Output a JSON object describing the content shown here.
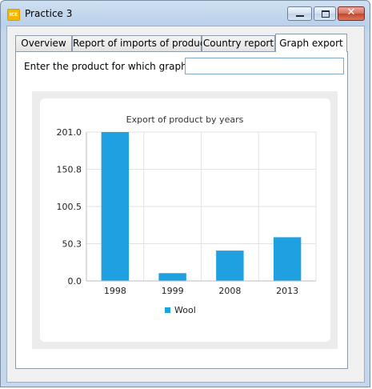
{
  "window": {
    "title": "Practice 3",
    "icon": "app-icon",
    "buttons": [
      "minimize-icon",
      "maximize-icon",
      "close-icon"
    ]
  },
  "tabs": [
    {
      "label": "Overview",
      "active": false
    },
    {
      "label": "Report of imports of product",
      "active": false
    },
    {
      "label": "Country report",
      "active": false
    },
    {
      "label": "Graph export",
      "active": true
    }
  ],
  "form": {
    "prompt_label": "Enter the product for which graph for:",
    "product_value": "",
    "product_placeholder": ""
  },
  "colors": {
    "bar": "#1fa0e0",
    "grid": "#e2e2e2"
  },
  "chart_data": {
    "type": "bar",
    "title": "Export of product by years",
    "categories": [
      "1998",
      "1999",
      "2008",
      "2013"
    ],
    "series": [
      {
        "name": "Wool",
        "values": [
          201.0,
          10.5,
          41.0,
          59.0
        ]
      }
    ],
    "ylim": [
      0,
      201.0
    ],
    "yticks": [
      "0.0",
      "50.3",
      "100.5",
      "150.8",
      "201.0"
    ],
    "grid": true,
    "legend": "bottom"
  }
}
